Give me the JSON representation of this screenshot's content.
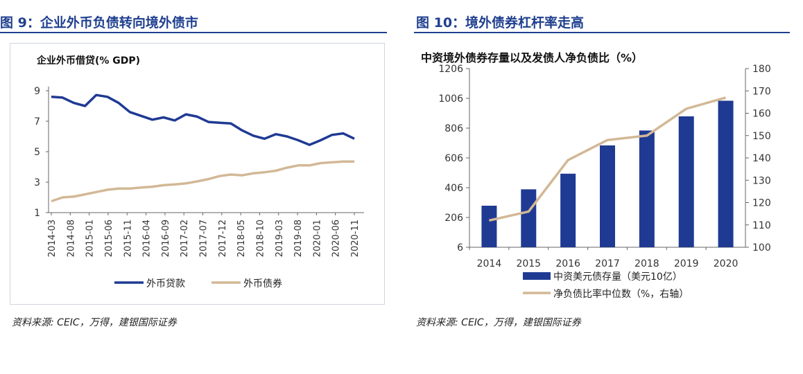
{
  "left": {
    "figure_title": "图 9：企业外币负债转向境外债市",
    "source": "资料来源: CEIC，万得，建银国际证券",
    "chart_data": {
      "type": "line",
      "title": "企业外币借贷(% GDP)",
      "ylim": [
        1,
        9
      ],
      "yticks": [
        "1",
        "3",
        "5",
        "7",
        "9"
      ],
      "x_labels": [
        "2014-03",
        "2014-08",
        "2015-01",
        "2015-06",
        "2015-11",
        "2016-04",
        "2016-09",
        "2017-02",
        "2017-07",
        "2017-12",
        "2018-05",
        "2018-10",
        "2019-03",
        "2019-08",
        "2020-01",
        "2020-06",
        "2020-11"
      ],
      "series": [
        {
          "name": "外币贷款",
          "color": "#1f3a93",
          "values": [
            8.6,
            8.55,
            8.2,
            8.0,
            8.72,
            8.6,
            8.2,
            7.6,
            7.35,
            7.1,
            7.25,
            7.05,
            7.45,
            7.3,
            6.95,
            6.9,
            6.85,
            6.4,
            6.05,
            5.85,
            6.15,
            6.0,
            5.75,
            5.45,
            5.75,
            6.1,
            6.2,
            5.85
          ]
        },
        {
          "name": "外币债券",
          "color": "#d2b896",
          "values": [
            1.75,
            2.0,
            2.05,
            2.2,
            2.35,
            2.5,
            2.58,
            2.58,
            2.65,
            2.7,
            2.8,
            2.85,
            2.92,
            3.05,
            3.2,
            3.4,
            3.5,
            3.45,
            3.58,
            3.65,
            3.75,
            3.95,
            4.1,
            4.1,
            4.25,
            4.3,
            4.35,
            4.35
          ]
        }
      ],
      "legend": "bottom"
    }
  },
  "right": {
    "figure_title": "图 10：境外债券杠杆率走高",
    "source": "资料来源: CEIC，万得，建银国际证券",
    "chart_data": {
      "type": "bar",
      "title": "中资境外债券存量以及发债人净负债比（%）",
      "categories": [
        "2014",
        "2015",
        "2016",
        "2017",
        "2018",
        "2019",
        "2020"
      ],
      "y_left_ticks": [
        "6",
        "206",
        "406",
        "606",
        "806",
        "1006",
        "1206"
      ],
      "y_left_lim": [
        6,
        1206
      ],
      "y_right_ticks": [
        "100",
        "110",
        "120",
        "130",
        "140",
        "150",
        "160",
        "170",
        "180"
      ],
      "y_right_lim": [
        100,
        180
      ],
      "series": [
        {
          "name": "中资美元债存量（美元10亿）",
          "type": "bar",
          "axis": "left",
          "color": "#1f3a93",
          "values": [
            285,
            395,
            500,
            690,
            790,
            885,
            990
          ]
        },
        {
          "name": "净负债比率中位数（%，右轴）",
          "type": "line",
          "axis": "right",
          "color": "#d2b896",
          "values": [
            112,
            116,
            139,
            148,
            150,
            162,
            167
          ]
        }
      ],
      "legend": "bottom"
    }
  }
}
